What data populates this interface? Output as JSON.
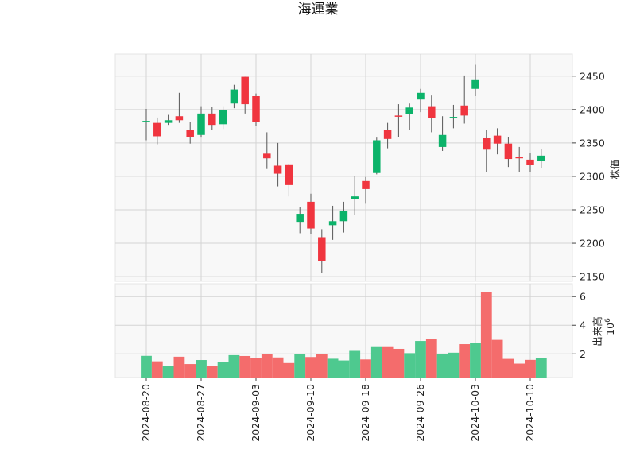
{
  "chart_data": {
    "type": "candlestick",
    "title": "海運業",
    "price_ylabel": "株価",
    "volume_ylabel": "出来高",
    "volume_scale_label": "10",
    "volume_scale_exp": "6",
    "x_tick_labels": [
      "2024-08-20",
      "2024-08-27",
      "2024-09-03",
      "2024-09-10",
      "2024-09-18",
      "2024-09-26",
      "2024-10-03",
      "2024-10-10"
    ],
    "x_tick_index": [
      0,
      5,
      10,
      15,
      20,
      25,
      30,
      35
    ],
    "price_ylim": [
      2143,
      2483
    ],
    "price_yticks": [
      2150,
      2200,
      2250,
      2300,
      2350,
      2400,
      2450
    ],
    "volume_ylim": [
      0.35,
      6.9
    ],
    "volume_yticks": [
      2,
      4,
      6
    ],
    "up_color": "#0cb36a",
    "down_color": "#f0353f",
    "vol_up_color": "#4ec98f",
    "vol_down_color": "#f46c6c",
    "candles": [
      {
        "o": 2382,
        "h": 2401,
        "l": 2354,
        "c": 2383,
        "v": 1.86
      },
      {
        "o": 2380,
        "h": 2388,
        "l": 2348,
        "c": 2360,
        "v": 1.48
      },
      {
        "o": 2380,
        "h": 2392,
        "l": 2377,
        "c": 2384,
        "v": 1.16
      },
      {
        "o": 2390,
        "h": 2425,
        "l": 2380,
        "c": 2384,
        "v": 1.8
      },
      {
        "o": 2369,
        "h": 2381,
        "l": 2349,
        "c": 2359,
        "v": 1.29
      },
      {
        "o": 2362,
        "h": 2405,
        "l": 2358,
        "c": 2394,
        "v": 1.57
      },
      {
        "o": 2394,
        "h": 2404,
        "l": 2369,
        "c": 2377,
        "v": 1.14
      },
      {
        "o": 2378,
        "h": 2405,
        "l": 2371,
        "c": 2399,
        "v": 1.42
      },
      {
        "o": 2409,
        "h": 2437,
        "l": 2402,
        "c": 2430,
        "v": 1.91
      },
      {
        "o": 2449,
        "h": 2449,
        "l": 2394,
        "c": 2408,
        "v": 1.85
      },
      {
        "o": 2420,
        "h": 2424,
        "l": 2376,
        "c": 2381,
        "v": 1.7
      },
      {
        "o": 2334,
        "h": 2366,
        "l": 2311,
        "c": 2327,
        "v": 1.99
      },
      {
        "o": 2316,
        "h": 2350,
        "l": 2285,
        "c": 2304,
        "v": 1.75
      },
      {
        "o": 2318,
        "h": 2319,
        "l": 2270,
        "c": 2287,
        "v": 1.36
      },
      {
        "o": 2232,
        "h": 2254,
        "l": 2215,
        "c": 2244,
        "v": 1.99
      },
      {
        "o": 2262,
        "h": 2274,
        "l": 2214,
        "c": 2222,
        "v": 1.78
      },
      {
        "o": 2209,
        "h": 2221,
        "l": 2156,
        "c": 2173,
        "v": 1.98
      },
      {
        "o": 2227,
        "h": 2256,
        "l": 2205,
        "c": 2233,
        "v": 1.66
      },
      {
        "o": 2233,
        "h": 2262,
        "l": 2216,
        "c": 2248,
        "v": 1.54
      },
      {
        "o": 2266,
        "h": 2300,
        "l": 2242,
        "c": 2270,
        "v": 2.21
      },
      {
        "o": 2293,
        "h": 2299,
        "l": 2259,
        "c": 2281,
        "v": 1.61
      },
      {
        "o": 2305,
        "h": 2358,
        "l": 2303,
        "c": 2354,
        "v": 2.53
      },
      {
        "o": 2370,
        "h": 2380,
        "l": 2342,
        "c": 2356,
        "v": 2.53
      },
      {
        "o": 2391,
        "h": 2408,
        "l": 2359,
        "c": 2390,
        "v": 2.35
      },
      {
        "o": 2393,
        "h": 2409,
        "l": 2370,
        "c": 2403,
        "v": 2.05
      },
      {
        "o": 2415,
        "h": 2431,
        "l": 2396,
        "c": 2425,
        "v": 2.9
      },
      {
        "o": 2405,
        "h": 2421,
        "l": 2366,
        "c": 2387,
        "v": 3.05
      },
      {
        "o": 2344,
        "h": 2390,
        "l": 2338,
        "c": 2362,
        "v": 1.98
      },
      {
        "o": 2388,
        "h": 2407,
        "l": 2372,
        "c": 2389,
        "v": 2.08
      },
      {
        "o": 2406,
        "h": 2451,
        "l": 2379,
        "c": 2391,
        "v": 2.68
      },
      {
        "o": 2431,
        "h": 2467,
        "l": 2420,
        "c": 2444,
        "v": 2.75
      },
      {
        "o": 2357,
        "h": 2370,
        "l": 2307,
        "c": 2340,
        "v": 6.3
      },
      {
        "o": 2361,
        "h": 2372,
        "l": 2333,
        "c": 2349,
        "v": 2.98
      },
      {
        "o": 2349,
        "h": 2359,
        "l": 2314,
        "c": 2326,
        "v": 1.65
      },
      {
        "o": 2329,
        "h": 2344,
        "l": 2306,
        "c": 2327,
        "v": 1.32
      },
      {
        "o": 2325,
        "h": 2335,
        "l": 2306,
        "c": 2317,
        "v": 1.58
      },
      {
        "o": 2323,
        "h": 2341,
        "l": 2313,
        "c": 2331,
        "v": 1.71
      }
    ]
  }
}
